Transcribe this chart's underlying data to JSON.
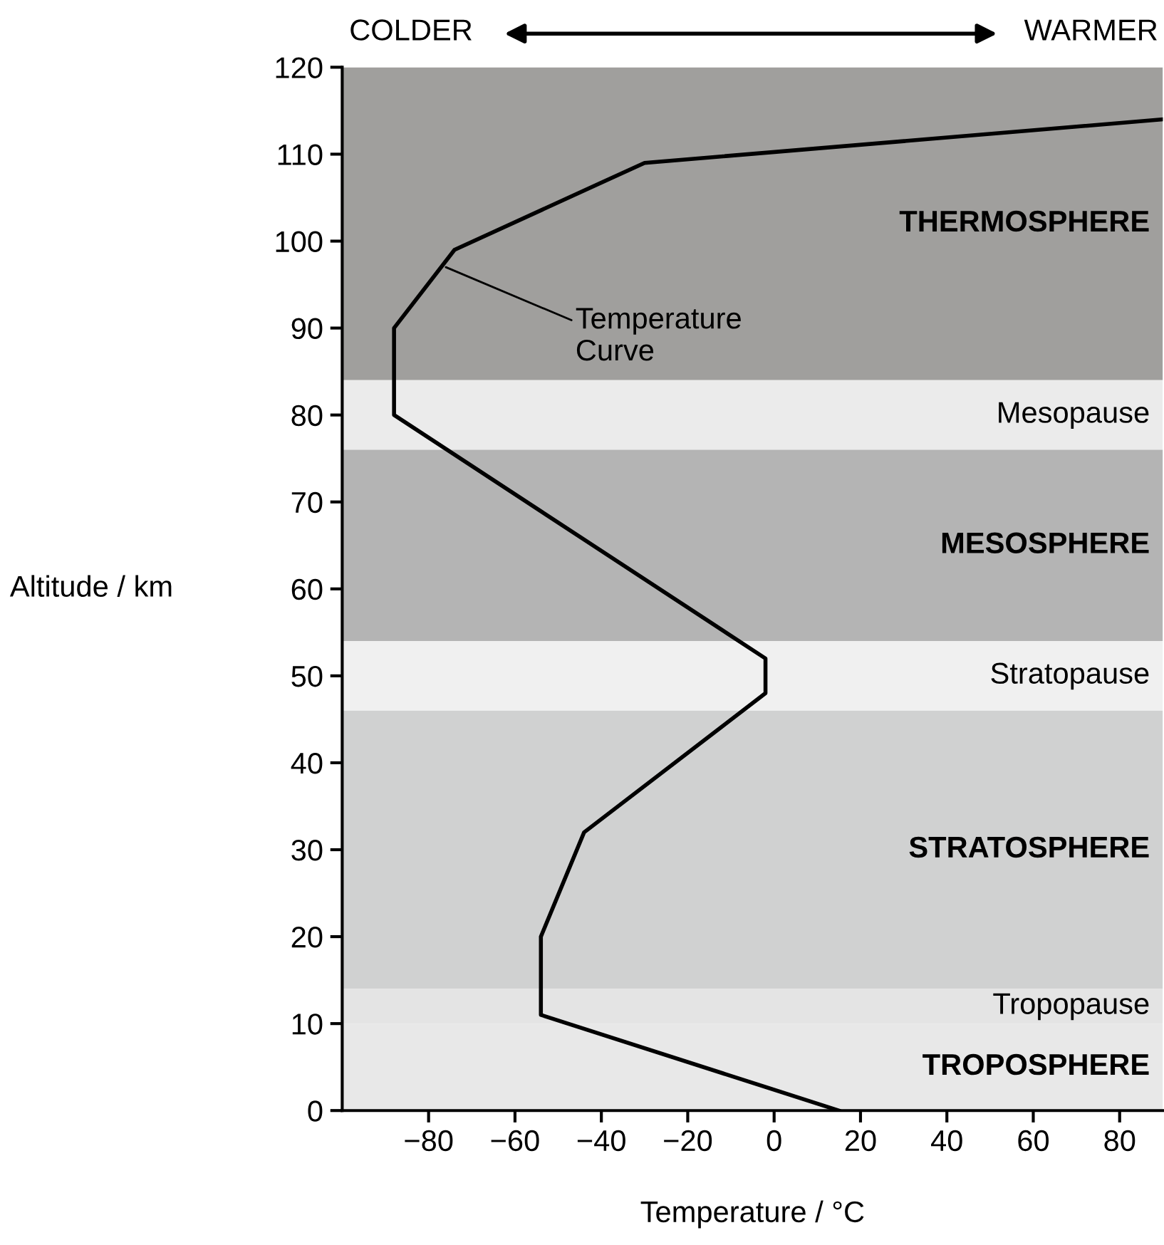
{
  "chart_data": {
    "type": "line",
    "xlabel": "Temperature / °C",
    "ylabel": "Altitude / km",
    "x": [
      15,
      -54,
      -54,
      -44,
      -2,
      -2,
      -88,
      -88,
      -74,
      -30,
      90
    ],
    "series": [
      {
        "color": "#000000",
        "values": [
          0,
          11,
          20,
          32,
          48,
          52,
          80,
          90,
          99,
          109,
          114
        ]
      }
    ],
    "xlim": [
      -100,
      90
    ],
    "ylim": [
      0,
      120
    ],
    "xticks": [
      {
        "value": -80,
        "label": "−80"
      },
      {
        "value": -60,
        "label": "−60"
      },
      {
        "value": -40,
        "label": "−40"
      },
      {
        "value": -20,
        "label": "−20"
      },
      0,
      20,
      40,
      60,
      80
    ],
    "yticks": [
      0,
      10,
      20,
      30,
      40,
      50,
      60,
      70,
      80,
      90,
      100,
      110,
      120
    ],
    "bands": [
      {
        "axis": "y",
        "from": 84,
        "to": 120,
        "label": "THERMOSPHERE",
        "color": "#a09f9d"
      },
      {
        "axis": "y",
        "from": 76,
        "to": 84,
        "label": "Mesopause",
        "color": "#ebebeb"
      },
      {
        "axis": "y",
        "from": 54,
        "to": 76,
        "label": "MESOSPHERE",
        "color": "#b4b4b4"
      },
      {
        "axis": "y",
        "from": 46,
        "to": 54,
        "label": "Stratopause",
        "color": "#f0f0f0"
      },
      {
        "axis": "y",
        "from": 14,
        "to": 46,
        "label": "STRATOSPHERE",
        "color": "#d0d1d1"
      },
      {
        "axis": "y",
        "from": 10,
        "to": 14,
        "label": "Tropopause",
        "color": "#e4e4e4"
      },
      {
        "axis": "y",
        "from": 0,
        "to": 10,
        "label": "TROPOSPHERE",
        "color": "#e8e8e8"
      }
    ],
    "annotations": [
      {
        "text": "Temperature\nCurve",
        "x": -76,
        "y": 97
      },
      "COLDER",
      "WARMER"
    ],
    "grid": false,
    "legend": false,
    "marker": "none",
    "line_style": "solid"
  }
}
